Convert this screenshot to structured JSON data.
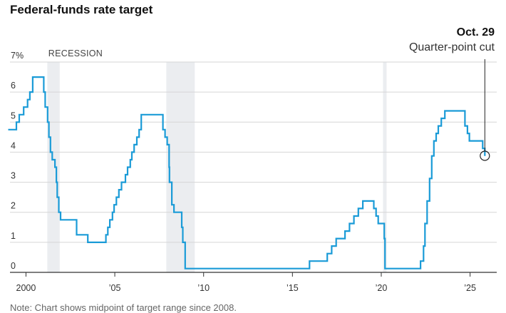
{
  "chart_data": {
    "type": "line",
    "title": "Federal-funds rate target",
    "xlabel": "",
    "ylabel": "",
    "x_tick_labels": [
      "2000",
      "’05",
      "’10",
      "’15",
      "’20",
      "’25"
    ],
    "y_tick_labels": [
      "7%",
      "6",
      "5",
      "4",
      "3",
      "2",
      "1",
      "0"
    ],
    "xlim": [
      1999.1,
      2026.5
    ],
    "ylim": [
      0,
      7
    ],
    "grid": "horizontal",
    "recession_label": "RECESSION",
    "recessions": [
      [
        2001.2,
        2001.9
      ],
      [
        2007.9,
        2009.5
      ],
      [
        2020.1,
        2020.3
      ]
    ],
    "annotation": {
      "date": "Oct. 29",
      "text": "Quarter-point cut",
      "x": 2025.83,
      "y": 3.88
    },
    "note": "Note: Chart shows midpoint of target range since 2008.",
    "series": [
      {
        "color": "#1a9bd7",
        "points": [
          [
            1999.0,
            4.75
          ],
          [
            1999.46,
            5.0
          ],
          [
            1999.62,
            5.25
          ],
          [
            1999.87,
            5.5
          ],
          [
            2000.09,
            5.75
          ],
          [
            2000.22,
            6.0
          ],
          [
            2000.38,
            6.5
          ],
          [
            2001.0,
            6.0
          ],
          [
            2001.08,
            5.5
          ],
          [
            2001.22,
            5.0
          ],
          [
            2001.29,
            4.5
          ],
          [
            2001.38,
            4.0
          ],
          [
            2001.48,
            3.75
          ],
          [
            2001.63,
            3.5
          ],
          [
            2001.71,
            3.0
          ],
          [
            2001.76,
            2.5
          ],
          [
            2001.85,
            2.0
          ],
          [
            2001.95,
            1.75
          ],
          [
            2002.85,
            1.25
          ],
          [
            2003.48,
            1.0
          ],
          [
            2004.5,
            1.25
          ],
          [
            2004.61,
            1.5
          ],
          [
            2004.72,
            1.75
          ],
          [
            2004.87,
            2.0
          ],
          [
            2004.96,
            2.25
          ],
          [
            2005.09,
            2.5
          ],
          [
            2005.23,
            2.75
          ],
          [
            2005.38,
            3.0
          ],
          [
            2005.6,
            3.25
          ],
          [
            2005.72,
            3.5
          ],
          [
            2005.87,
            3.75
          ],
          [
            2005.96,
            4.0
          ],
          [
            2006.09,
            4.25
          ],
          [
            2006.24,
            4.5
          ],
          [
            2006.37,
            4.75
          ],
          [
            2006.49,
            5.25
          ],
          [
            2007.71,
            4.75
          ],
          [
            2007.83,
            4.5
          ],
          [
            2007.95,
            4.25
          ],
          [
            2008.06,
            3.5
          ],
          [
            2008.08,
            3.0
          ],
          [
            2008.21,
            2.25
          ],
          [
            2008.33,
            2.0
          ],
          [
            2008.77,
            1.5
          ],
          [
            2008.83,
            1.0
          ],
          [
            2008.96,
            0.125
          ],
          [
            2015.96,
            0.375
          ],
          [
            2016.96,
            0.625
          ],
          [
            2017.21,
            0.875
          ],
          [
            2017.46,
            1.125
          ],
          [
            2017.96,
            1.375
          ],
          [
            2018.21,
            1.625
          ],
          [
            2018.46,
            1.875
          ],
          [
            2018.71,
            2.125
          ],
          [
            2018.96,
            2.375
          ],
          [
            2019.58,
            2.125
          ],
          [
            2019.71,
            1.875
          ],
          [
            2019.83,
            1.625
          ],
          [
            2020.17,
            1.125
          ],
          [
            2020.21,
            0.125
          ],
          [
            2022.21,
            0.375
          ],
          [
            2022.38,
            0.875
          ],
          [
            2022.46,
            1.625
          ],
          [
            2022.58,
            2.375
          ],
          [
            2022.72,
            3.125
          ],
          [
            2022.84,
            3.875
          ],
          [
            2022.96,
            4.375
          ],
          [
            2023.09,
            4.625
          ],
          [
            2023.21,
            4.875
          ],
          [
            2023.38,
            5.125
          ],
          [
            2023.58,
            5.375
          ],
          [
            2024.71,
            4.875
          ],
          [
            2024.85,
            4.625
          ],
          [
            2024.96,
            4.375
          ],
          [
            2025.71,
            4.125
          ],
          [
            2025.83,
            3.875
          ]
        ]
      }
    ]
  }
}
